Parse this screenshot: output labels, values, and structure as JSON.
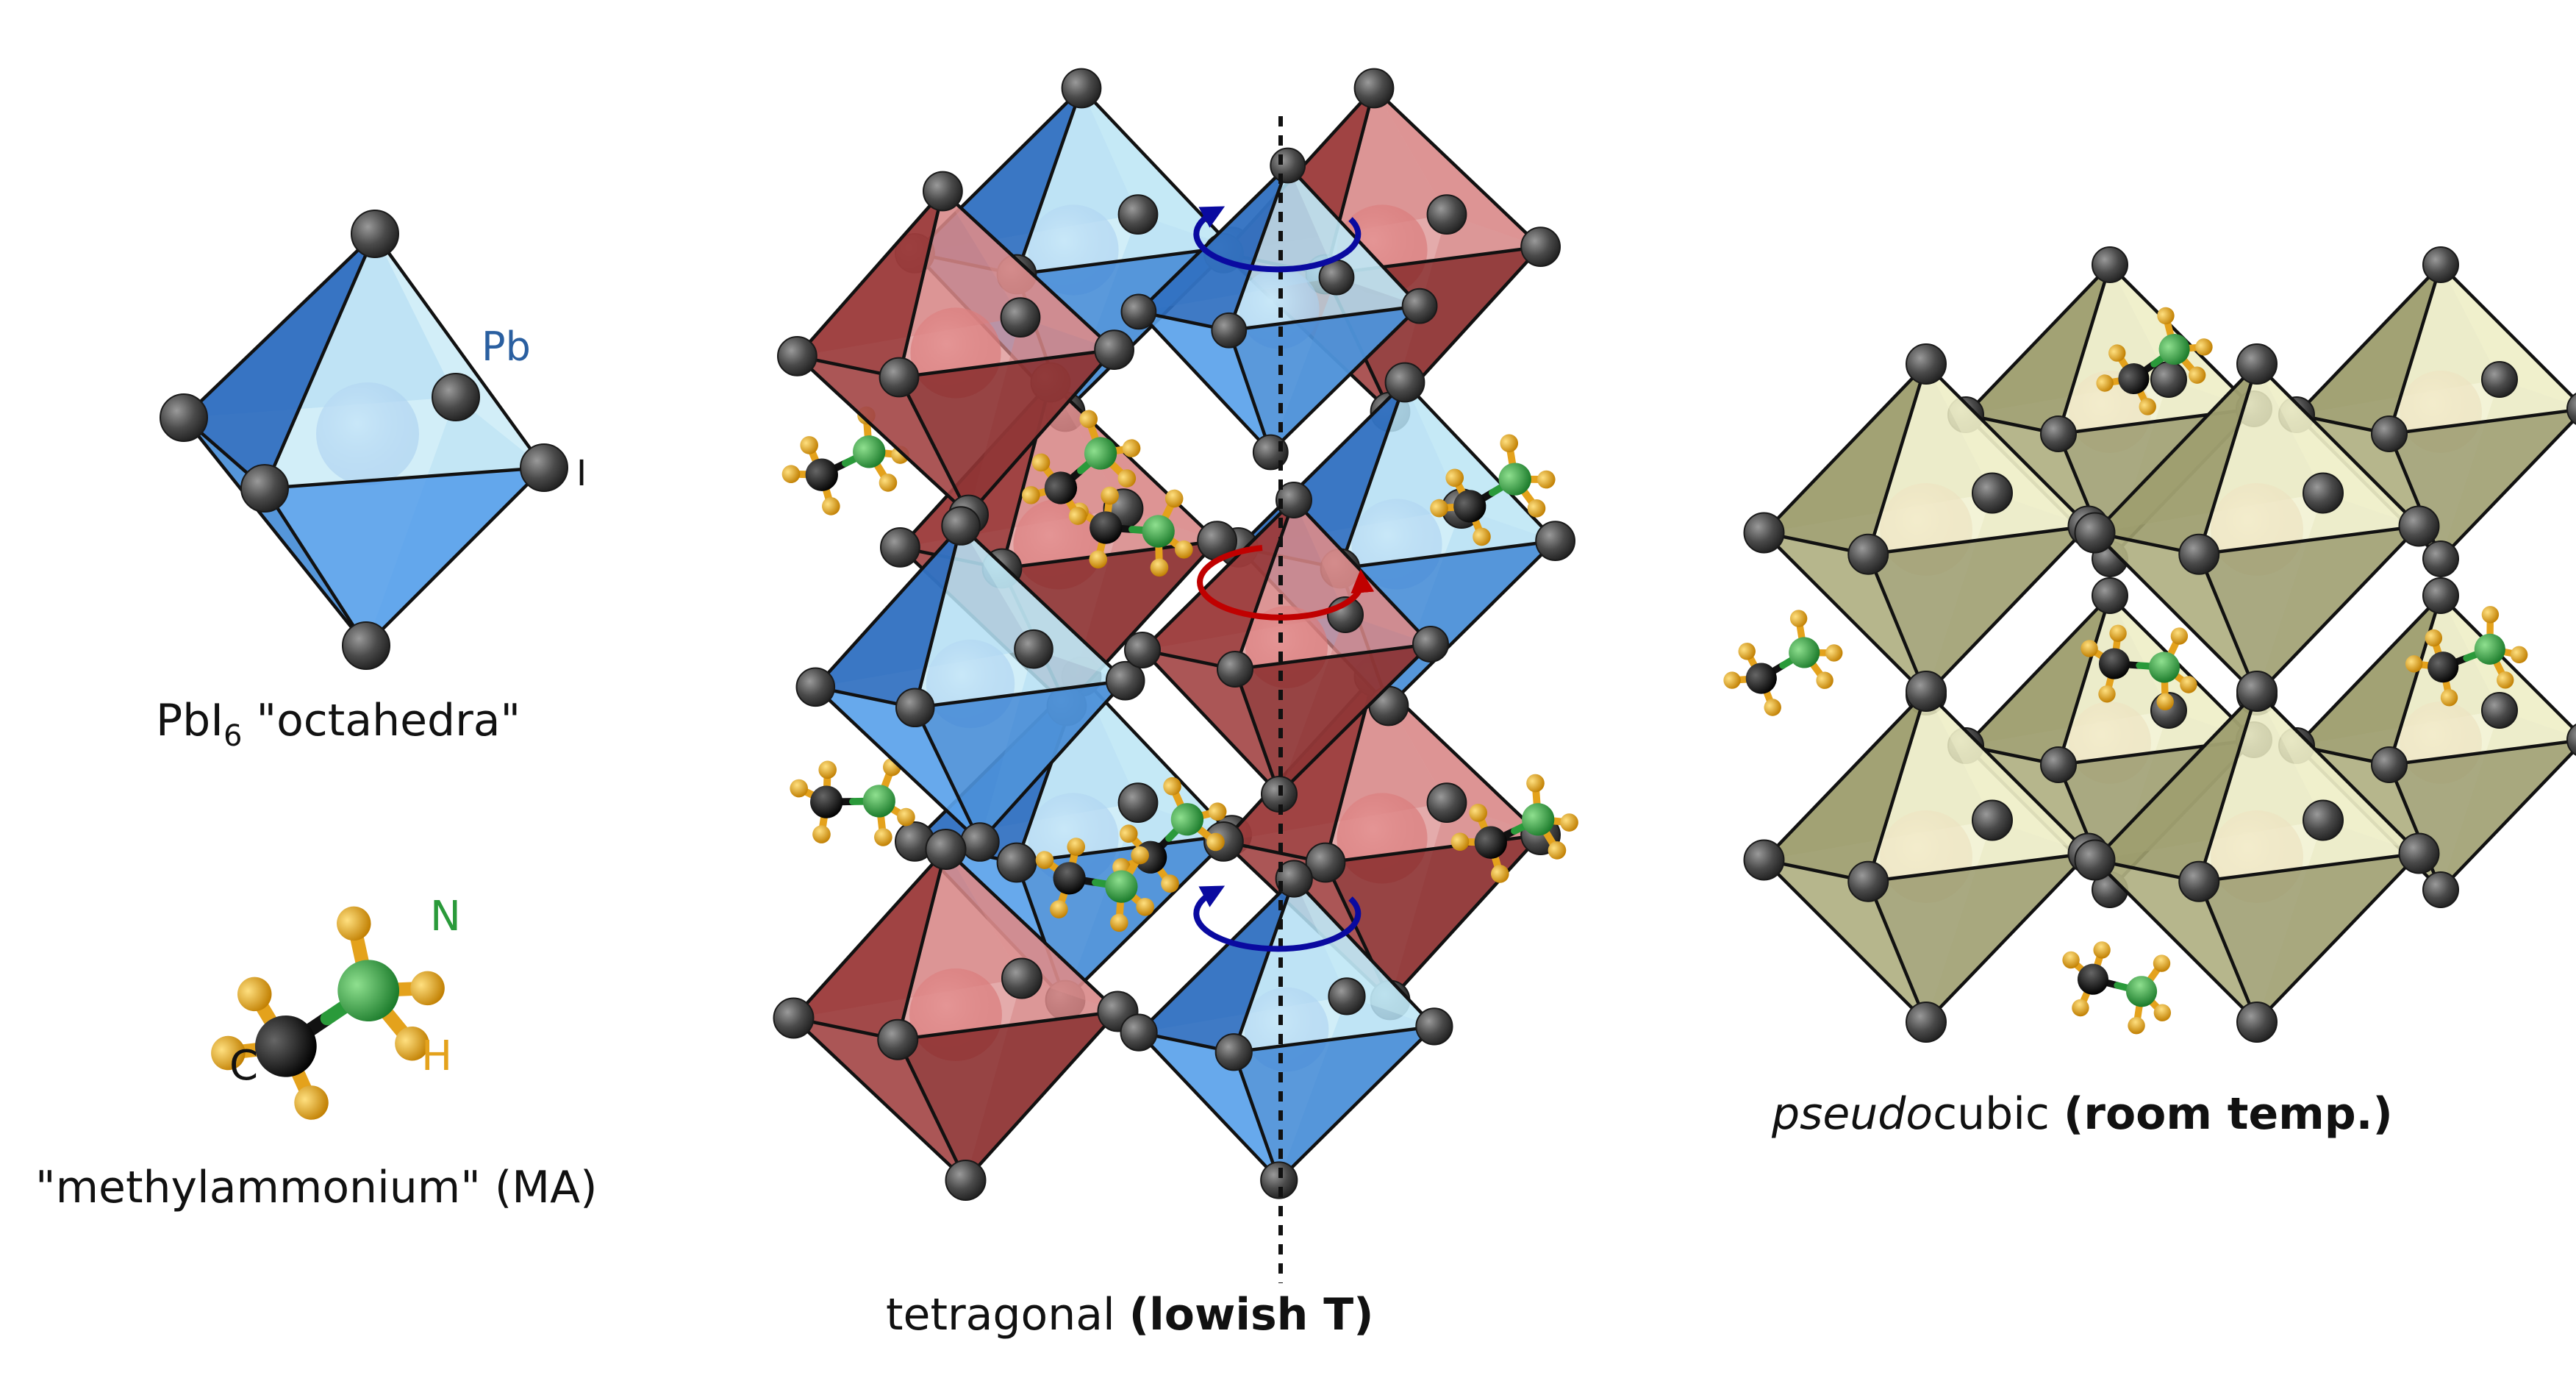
{
  "labels": {
    "pb": "Pb",
    "i": "I",
    "octahedra_prefix": "PbI",
    "octahedra_sub": "6",
    "octahedra_suffix": " \"octahedra\"",
    "n": "N",
    "h": "H",
    "c": "C",
    "ma": "\"methylammonium\" (MA)",
    "tetragonal": "tetragonal ",
    "tetragonal_bold": "(lowish T)",
    "pseudo_italic": "pseudo",
    "pseudo_rest": "cubic ",
    "pseudo_bold": "(room temp.)"
  },
  "colors": {
    "blue_octahedron": "#5b9fe0",
    "blue_light_face": "#c8ecf7",
    "red_octahedron": "#c06060",
    "olive_octahedron": "#b6b688",
    "olive_light_face": "#f2f2cc",
    "iodine": "#4a4a4a",
    "nitrogen": "#2a9a3a",
    "carbon": "#111111",
    "hydrogen": "#e4a21c",
    "rotation_blue": "#0a0aa0",
    "rotation_red": "#c00000",
    "pb_label": "#2a5fa0"
  }
}
